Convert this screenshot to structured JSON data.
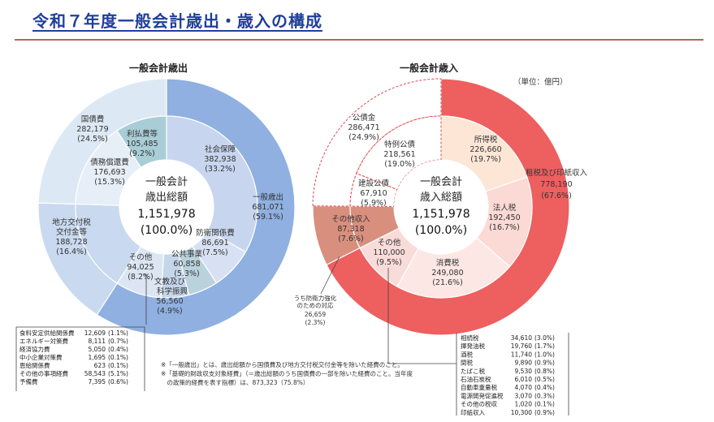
{
  "title": "令和７年度一般会計歳出・歳入の構成",
  "unit": "（単位：億円）",
  "notes": [
    "※「一般歳出」とは、歳出総額から国債費及び地方交付税交付金等を除いた経費のこと。",
    "※「基礎的財政収支対象経費」（＝歳出総額のうち国債費の一部を除いた経費のこと。当年度",
    "　の政策的経費を表す指標）は、873,323（75.8%）"
  ],
  "chart_data": [
    {
      "type": "pie",
      "title": "一般会計歳出",
      "center": {
        "line1": "一般会計",
        "line2": "歳出総額",
        "value": "1,151,978",
        "pct": "(100.0%)"
      },
      "total": 1151978,
      "outer": [
        {
          "name": "一般歳出",
          "value": 681071,
          "value_label": "681,071",
          "pct": "(59.1%)",
          "color": "#8fb0e0"
        },
        {
          "name": "地方交付税交付金等",
          "value": 188728,
          "value_label": "188,728",
          "pct": "(16.4%)",
          "color": "#c9d9ef"
        },
        {
          "name": "国債費",
          "value": 282179,
          "value_label": "282,179",
          "pct": "(24.5%)",
          "color": "#dce9f4"
        }
      ],
      "inner": [
        {
          "name": "社会保障",
          "value": 382938,
          "value_label": "382,938",
          "pct": "(33.2%)",
          "color": "#c7d5ef"
        },
        {
          "name": "防衛関係費",
          "value": 86691,
          "value_label": "86,691",
          "pct": "(7.5%)",
          "color": "#d7e1f3"
        },
        {
          "name": "公共事業",
          "value": 60858,
          "value_label": "60,858",
          "pct": "(5.3%)",
          "color": "#b9d2dc"
        },
        {
          "name": "文教及び科学振興",
          "value": 56560,
          "value_label": "56,560",
          "pct": "(4.9%)",
          "color": "#c5d6ea"
        },
        {
          "name": "その他",
          "value": 94025,
          "value_label": "94,025",
          "pct": "(8.2%)",
          "color": "#dbe6f2"
        },
        {
          "name": "地方交付税交付金等",
          "value": 188728,
          "value_label": "",
          "pct": "",
          "color": "#c9d9ef"
        },
        {
          "name": "債務償還費",
          "value": 176693,
          "value_label": "176,693",
          "pct": "(15.3%)",
          "color": "#e6eef7"
        },
        {
          "name": "利払費等",
          "value": 105485,
          "value_label": "105,485",
          "pct": "(9.2%)",
          "color": "#a9cdd6"
        }
      ],
      "breakdown": [
        {
          "name": "食料安定供給関係費",
          "value": "12,609",
          "pct": "(1.1%)"
        },
        {
          "name": "エネルギー対策費",
          "value": "8,111",
          "pct": "(0.7%)"
        },
        {
          "name": "経済協力費",
          "value": "5,050",
          "pct": "(0.4%)"
        },
        {
          "name": "中小企業対策費",
          "value": "1,695",
          "pct": "(0.1%)"
        },
        {
          "name": "恩給関係費",
          "value": "623",
          "pct": "(0.1%)"
        },
        {
          "name": "その他の事項経費",
          "value": "58,543",
          "pct": "(5.1%)"
        },
        {
          "name": "予備費",
          "value": "7,395",
          "pct": "(0.6%)"
        }
      ]
    },
    {
      "type": "pie",
      "title": "一般会計歳入",
      "center": {
        "line1": "一般会計",
        "line2": "歳入総額",
        "value": "1,151,978",
        "pct": "(100.0%)"
      },
      "total": 1151978,
      "outer": [
        {
          "name": "租税及び印紙収入",
          "value": 778190,
          "value_label": "778,190",
          "pct": "(67.6%)",
          "color": "#ee5f5f"
        },
        {
          "name": "その他収入",
          "value": 87318,
          "value_label": "87,318",
          "pct": "(7.6%)",
          "color": "#d98f7e"
        },
        {
          "name": "公債金",
          "value": 286471,
          "value_label": "286,471",
          "pct": "(24.9%)",
          "color": "#ffffff"
        }
      ],
      "inner": [
        {
          "name": "所得税",
          "value": 226660,
          "value_label": "226,660",
          "pct": "(19.7%)",
          "color": "#fde6d6"
        },
        {
          "name": "法人税",
          "value": 192450,
          "value_label": "192,450",
          "pct": "(16.7%)",
          "color": "#fbd9d4"
        },
        {
          "name": "消費税",
          "value": 249080,
          "value_label": "249,080",
          "pct": "(21.6%)",
          "color": "#fde7e4"
        },
        {
          "name": "その他",
          "value": 110000,
          "value_label": "110,000",
          "pct": "(9.5%)",
          "color": "#f8dcd9"
        },
        {
          "name": "その他収入",
          "value": 87318,
          "value_label": "",
          "pct": "",
          "color": "#d98f7e"
        },
        {
          "name": "建設公債",
          "value": 67910,
          "value_label": "67,910",
          "pct": "(5.9%)",
          "color": "#ffffff"
        },
        {
          "name": "特例公債",
          "value": 218561,
          "value_label": "218,561",
          "pct": "(19.0%)",
          "color": "#ffffff"
        }
      ],
      "callout": {
        "lines": [
          "うち防衛力強化",
          "のための対応"
        ],
        "value": "26,659",
        "pct": "(2.3%)"
      },
      "breakdown": [
        {
          "name": "相続税",
          "value": "34,610",
          "pct": "(3.0%)"
        },
        {
          "name": "揮発油税",
          "value": "19,760",
          "pct": "(1.7%)"
        },
        {
          "name": "酒税",
          "value": "11,740",
          "pct": "(1.0%)"
        },
        {
          "name": "関税",
          "value": "9,890",
          "pct": "(0.9%)"
        },
        {
          "name": "たばこ税",
          "value": "9,530",
          "pct": "(0.8%)"
        },
        {
          "name": "石油石炭税",
          "value": "6,010",
          "pct": "(0.5%)"
        },
        {
          "name": "自動車重量税",
          "value": "4,070",
          "pct": "(0.4%)"
        },
        {
          "name": "電源開発促進税",
          "value": "3,070",
          "pct": "(0.3%)"
        },
        {
          "name": "その他の税収",
          "value": "1,020",
          "pct": "(0.1%)"
        },
        {
          "name": "印紙収入",
          "value": "10,300",
          "pct": "(0.9%)"
        }
      ]
    }
  ]
}
